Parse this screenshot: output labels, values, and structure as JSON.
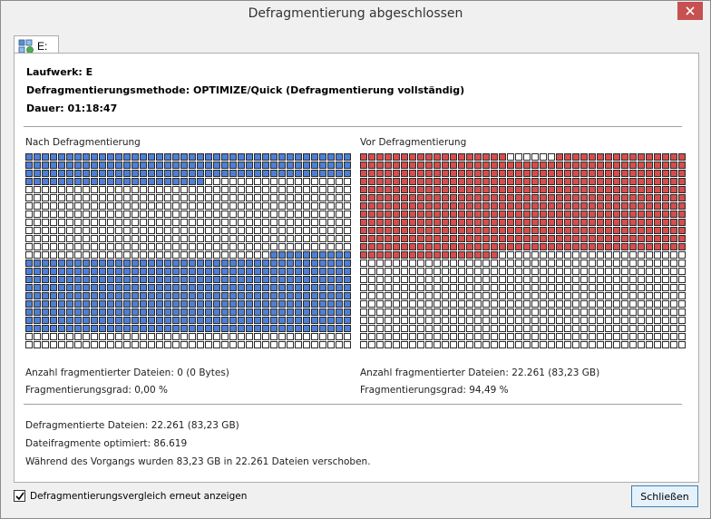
{
  "window": {
    "title": "Defragmentierung abgeschlossen"
  },
  "tab": {
    "label": "E:"
  },
  "info": {
    "drive": "Laufwerk: E",
    "method": "Defragmentierungsmethode: OPTIMIZE/Quick (Defragmentierung vollständig)",
    "duration": "Dauer: 01:18:47"
  },
  "after": {
    "heading": "Nach Defragmentierung",
    "fragmented_files": "Anzahl fragmentierter Dateien: 0 (0 Bytes)",
    "fragmentation_level": "Fragmentierungsgrad: 0,00 %"
  },
  "before": {
    "heading": "Vor Defragmentierung",
    "fragmented_files": "Anzahl fragmentierter Dateien: 22.261 (83,23 GB)",
    "fragmentation_level": "Fragmentierungsgrad: 94,49 %"
  },
  "summary": {
    "defragmented_files": "Defragmentierte Dateien: 22.261 (83,23 GB)",
    "fragments_optimized": "Dateifragmente optimiert: 86.619",
    "moved": "Während des Vorgangs wurden 83,23 GB in 22.261 Dateien verschoben."
  },
  "footer": {
    "checkbox_label": "Defragmentierungsvergleich erneut anzeigen",
    "checkbox_checked": true,
    "close_button": "Schließen"
  },
  "colors": {
    "used_after": "#4d7fd6",
    "fragmented_before": "#d64d4d",
    "free": "#ffffff"
  }
}
